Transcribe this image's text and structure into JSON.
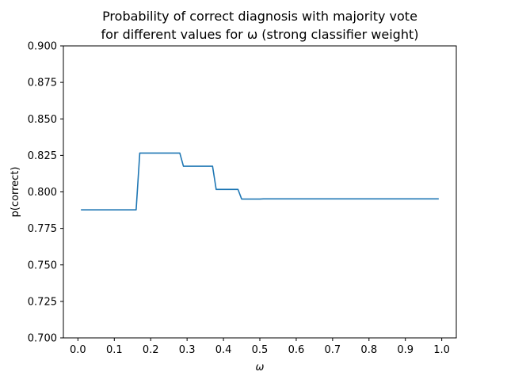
{
  "chart_data": {
    "type": "line",
    "title_line1": "Probability of correct diagnosis with majority vote",
    "title_line2": "for different values for ω (strong classifier weight)",
    "xlabel": "ω",
    "ylabel": "p(correct)",
    "xlim": [
      -0.04,
      1.04
    ],
    "ylim": [
      0.7,
      0.9
    ],
    "xticks": [
      0.0,
      0.1,
      0.2,
      0.3,
      0.4,
      0.5,
      0.6,
      0.7,
      0.8,
      0.9,
      1.0
    ],
    "xtick_labels": [
      "0.0",
      "0.1",
      "0.2",
      "0.3",
      "0.4",
      "0.5",
      "0.6",
      "0.7",
      "0.8",
      "0.9",
      "1.0"
    ],
    "yticks": [
      0.7,
      0.725,
      0.75,
      0.775,
      0.8,
      0.825,
      0.85,
      0.875,
      0.9
    ],
    "ytick_labels": [
      "0.700",
      "0.725",
      "0.750",
      "0.775",
      "0.800",
      "0.825",
      "0.850",
      "0.875",
      "0.900"
    ],
    "grid": false,
    "line_color": "#1f77b4",
    "series": [
      {
        "x": [
          0.01,
          0.16,
          0.17,
          0.28,
          0.29,
          0.37,
          0.38,
          0.44,
          0.45,
          0.5,
          0.51,
          0.99
        ],
        "y": [
          0.7877,
          0.7877,
          0.8266,
          0.8266,
          0.8176,
          0.8176,
          0.8017,
          0.8017,
          0.7951,
          0.7951,
          0.7952,
          0.7952
        ]
      }
    ]
  }
}
